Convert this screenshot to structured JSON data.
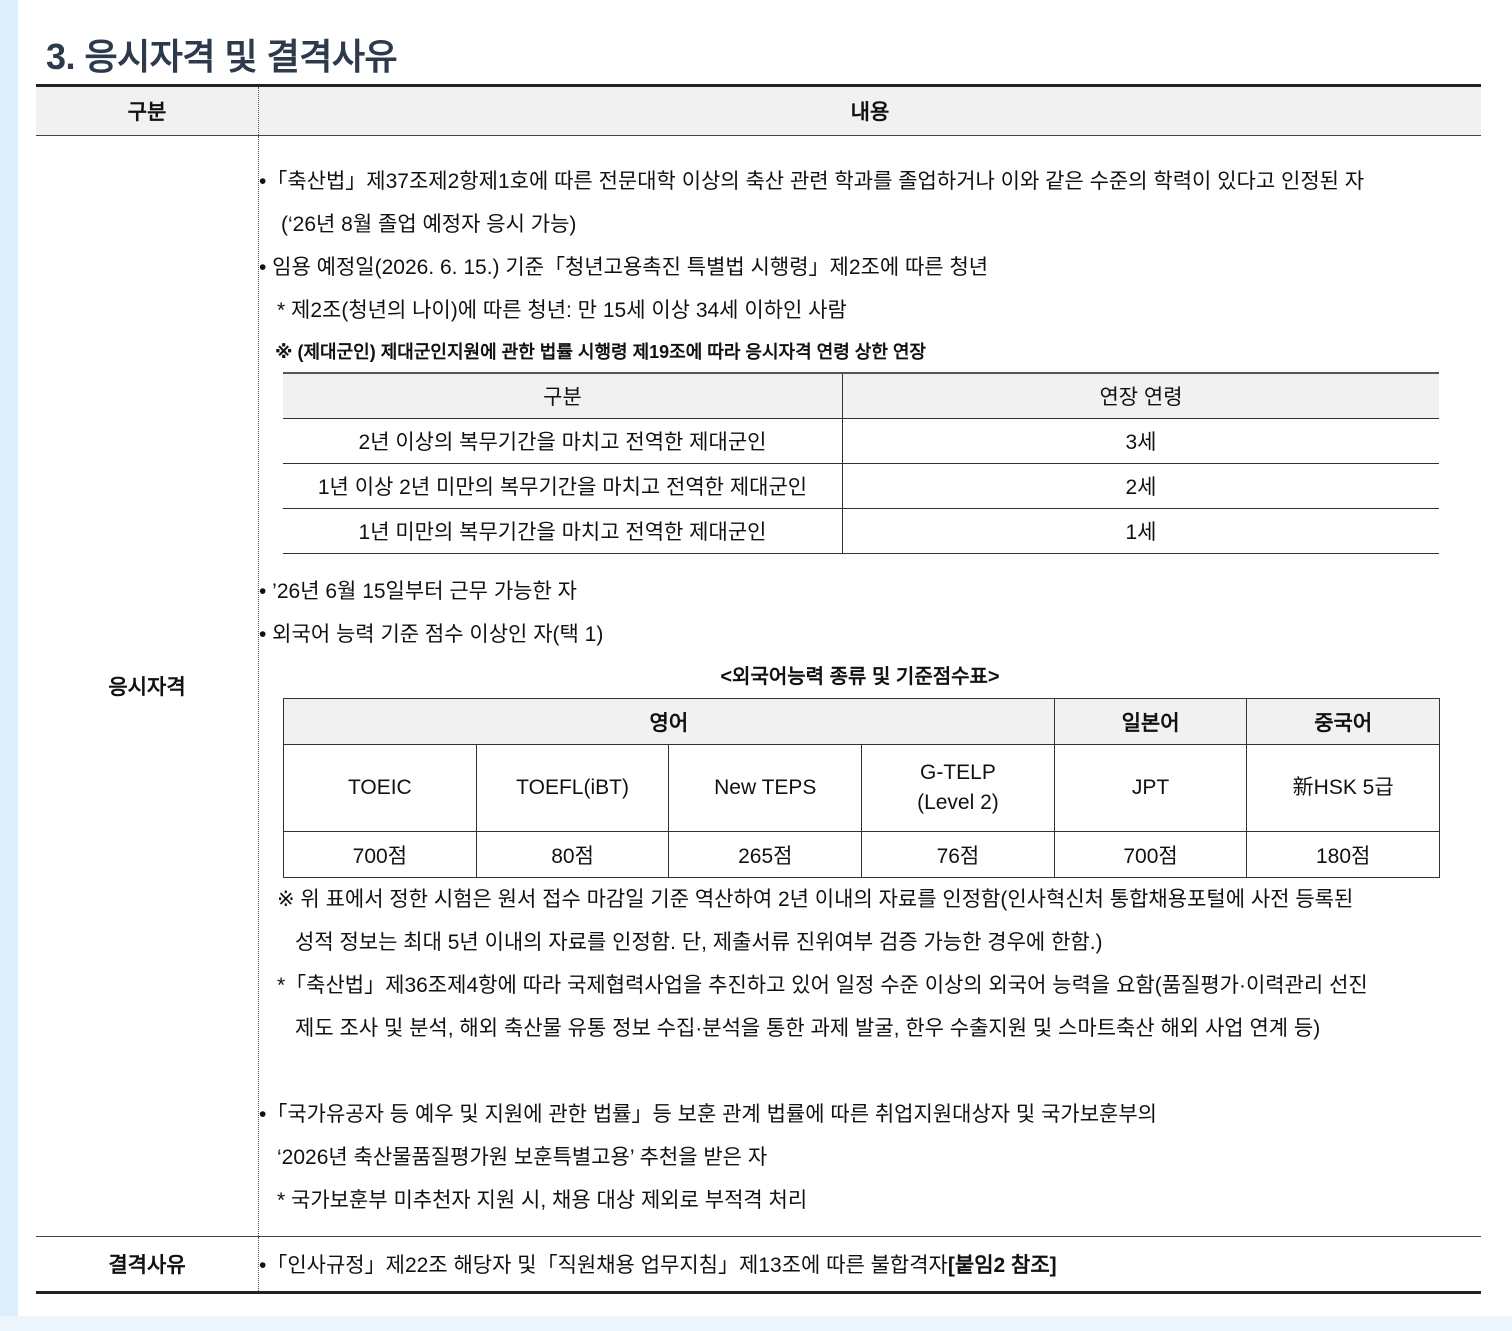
{
  "title": "3. 응시자격 및 결격사유",
  "header": {
    "col1": "구분",
    "col2": "내용"
  },
  "qualification": {
    "label": "응시자격",
    "lines": [
      "•「축산법」제37조제2항제1호에 따른 전문대학 이상의 축산 관련 학과를 졸업하거나 이와 같은 수준의 학력이 있다고 인정된 자",
      "(‘26년 8월 졸업 예정자 응시 가능)",
      "• 임용 예정일(2026. 6. 15.) 기준「청년고용촉진 특별법 시행령」제2조에 따른 청년",
      "* 제2조(청년의 나이)에 따른 청년: 만 15세 이상 34세 이하인 사람",
      "※ (제대군인) 제대군인지원에 관한 법률 시행령 제19조에 따라 응시자격 연령 상한 연장"
    ],
    "veteran_table": {
      "headers": [
        "구분",
        "연장 연령"
      ],
      "rows": [
        [
          "2년 이상의 복무기간을 마치고 전역한 제대군인",
          "3세"
        ],
        [
          "1년 이상 2년 미만의 복무기간을 마치고 전역한 제대군인",
          "2세"
        ],
        [
          "1년 미만의 복무기간을 마치고 전역한 제대군인",
          "1세"
        ]
      ]
    },
    "lines2": [
      "• ’26년 6월 15일부터 근무 가능한 자",
      "• 외국어 능력 기준 점수 이상인 자(택 1)"
    ],
    "lang_caption": "<외국어능력 종류 및 기준점수표>",
    "lang_table": {
      "groups": [
        "영어",
        "일본어",
        "중국어"
      ],
      "tests": [
        "TOEIC",
        "TOEFL(iBT)",
        "New TEPS",
        "G-TELP",
        "JPT",
        "新HSK 5급"
      ],
      "gtelp_sub": "(Level 2)",
      "scores": [
        "700점",
        "80점",
        "265점",
        "76점",
        "700점",
        "180점"
      ]
    },
    "notes": [
      "※ 위 표에서 정한 시험은 원서 접수 마감일 기준 역산하여 2년 이내의 자료를 인정함(인사혁신처 통합채용포털에 사전 등록된",
      "성적 정보는 최대 5년 이내의 자료를 인정함. 단, 제출서류 진위여부 검증 가능한 경우에 한함.)",
      "*「축산법」제36조제4항에 따라 국제협력사업을 추진하고 있어 일정 수준 이상의 외국어 능력을 요함(품질평가·이력관리 선진",
      "제도 조사 및 분석, 해외 축산물 유통 정보 수집·분석을 통한 과제 발굴, 한우 수출지원 및 스마트축산 해외 사업 연계 등)"
    ],
    "lines3": [
      "•「국가유공자 등 예우 및 지원에 관한 법률」등 보훈 관계 법률에 따른 취업지원대상자 및 국가보훈부의",
      "‘2026년 축산물품질평가원 보훈특별고용’ 추천을 받은 자",
      "* 국가보훈부 미추천자 지원 시, 채용 대상 제외로 부적격 처리"
    ]
  },
  "disqualification": {
    "label": "결격사유",
    "text": "•「인사규정」제22조 해당자 및「직원채용 업무지침」제13조에 따른 불합격자",
    "bold_ref": "[붙임2 참조]"
  }
}
